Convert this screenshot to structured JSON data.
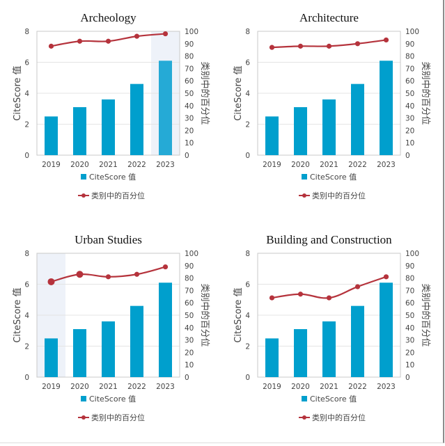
{
  "chart_data": [
    {
      "type": "bar",
      "title": "Archeology",
      "categories": [
        "2019",
        "2020",
        "2021",
        "2022",
        "2023"
      ],
      "series": [
        {
          "name": "CiteScore 值",
          "type": "bar",
          "axis": "left",
          "values": [
            2.5,
            3.1,
            3.6,
            4.6,
            6.1
          ]
        },
        {
          "name": "类别中的百分位",
          "type": "line",
          "axis": "right",
          "values": [
            88,
            92,
            92,
            96,
            98
          ]
        }
      ],
      "ylabel": "CiteScore 值",
      "y2label": "类别中的百分位",
      "ylim": [
        0,
        8
      ],
      "y2lim": [
        0,
        100
      ],
      "yticks": [
        "0",
        "2",
        "4",
        "6",
        "8"
      ],
      "y2ticks": [
        "0",
        "10",
        "20",
        "30",
        "40",
        "50",
        "60",
        "70",
        "80",
        "90",
        "100"
      ],
      "highlight_category": "2023",
      "emphasized_points": [],
      "grid": true,
      "legend": "bottom"
    },
    {
      "type": "bar",
      "title": "Architecture",
      "categories": [
        "2019",
        "2020",
        "2021",
        "2022",
        "2023"
      ],
      "series": [
        {
          "name": "CiteScore 值",
          "type": "bar",
          "axis": "left",
          "values": [
            2.5,
            3.1,
            3.6,
            4.6,
            6.1
          ]
        },
        {
          "name": "类别中的百分位",
          "type": "line",
          "axis": "right",
          "values": [
            87,
            88,
            88,
            90,
            93
          ]
        }
      ],
      "ylabel": "CiteScore 值",
      "y2label": "类别中的百分位",
      "ylim": [
        0,
        8
      ],
      "y2lim": [
        0,
        100
      ],
      "yticks": [
        "0",
        "2",
        "4",
        "6",
        "8"
      ],
      "y2ticks": [
        "0",
        "10",
        "20",
        "30",
        "40",
        "50",
        "60",
        "70",
        "80",
        "90",
        "100"
      ],
      "highlight_category": null,
      "emphasized_points": [],
      "grid": true,
      "legend": "bottom"
    },
    {
      "type": "bar",
      "title": "Urban Studies",
      "categories": [
        "2019",
        "2020",
        "2021",
        "2022",
        "2023"
      ],
      "series": [
        {
          "name": "CiteScore 值",
          "type": "bar",
          "axis": "left",
          "values": [
            2.5,
            3.1,
            3.6,
            4.6,
            6.1
          ]
        },
        {
          "name": "类别中的百分位",
          "type": "line",
          "axis": "right",
          "values": [
            77,
            83,
            81,
            83,
            89
          ]
        }
      ],
      "ylabel": "CiteScore 值",
      "y2label": "类别中的百分位",
      "ylim": [
        0,
        8
      ],
      "y2lim": [
        0,
        100
      ],
      "yticks": [
        "0",
        "2",
        "4",
        "6",
        "8"
      ],
      "y2ticks": [
        "0",
        "10",
        "20",
        "30",
        "40",
        "50",
        "60",
        "70",
        "80",
        "90",
        "100"
      ],
      "highlight_category": "2019",
      "emphasized_points": [
        "2019",
        "2020"
      ],
      "grid": true,
      "legend": "bottom"
    },
    {
      "type": "bar",
      "title": "Building and Construction",
      "categories": [
        "2019",
        "2020",
        "2021",
        "2022",
        "2023"
      ],
      "series": [
        {
          "name": "CiteScore 值",
          "type": "bar",
          "axis": "left",
          "values": [
            2.5,
            3.1,
            3.6,
            4.6,
            6.1
          ]
        },
        {
          "name": "类别中的百分位",
          "type": "line",
          "axis": "right",
          "values": [
            64,
            67,
            64,
            73,
            81
          ]
        }
      ],
      "ylabel": "CiteScore 值",
      "y2label": "类别中的百分位",
      "ylim": [
        0,
        8
      ],
      "y2lim": [
        0,
        100
      ],
      "yticks": [
        "0",
        "2",
        "4",
        "6",
        "8"
      ],
      "y2ticks": [
        "0",
        "10",
        "20",
        "30",
        "40",
        "50",
        "60",
        "70",
        "80",
        "90",
        "100"
      ],
      "highlight_category": null,
      "emphasized_points": [],
      "grid": true,
      "legend": "bottom"
    }
  ],
  "colors": {
    "bar": "#009fcd",
    "bar_highlight": "#25aad6",
    "line": "#b5333c",
    "highlight_band": "#eef2f9",
    "grid": "#e4e4e4",
    "axis": "#c8c8c8"
  }
}
